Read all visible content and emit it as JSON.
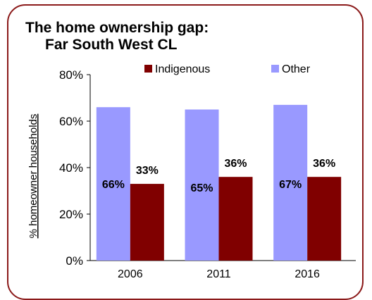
{
  "title_line1": "The home ownership gap:",
  "title_line2": "Far South West CL",
  "colors": {
    "Indigenous": "#800000",
    "Other": "#9999ff",
    "border": "#8b1a1a"
  },
  "chart_data": {
    "type": "bar",
    "title": "The home ownership gap: Far South West CL",
    "ylabel": "% homeowner households",
    "xlabel": "",
    "ylim": [
      0,
      80
    ],
    "yticks": [
      "0%",
      "20%",
      "40%",
      "60%",
      "80%"
    ],
    "ytick_values": [
      0,
      20,
      40,
      60,
      80
    ],
    "categories": [
      "2006",
      "2011",
      "2016"
    ],
    "legend_position": "top",
    "series": [
      {
        "name": "Other",
        "values": [
          66,
          65,
          67
        ],
        "labels": [
          "66%",
          "65%",
          "67%"
        ]
      },
      {
        "name": "Indigenous",
        "values": [
          33,
          36,
          36
        ],
        "labels": [
          "33%",
          "36%",
          "36%"
        ]
      }
    ],
    "legend": [
      "Indigenous",
      "Other"
    ]
  }
}
